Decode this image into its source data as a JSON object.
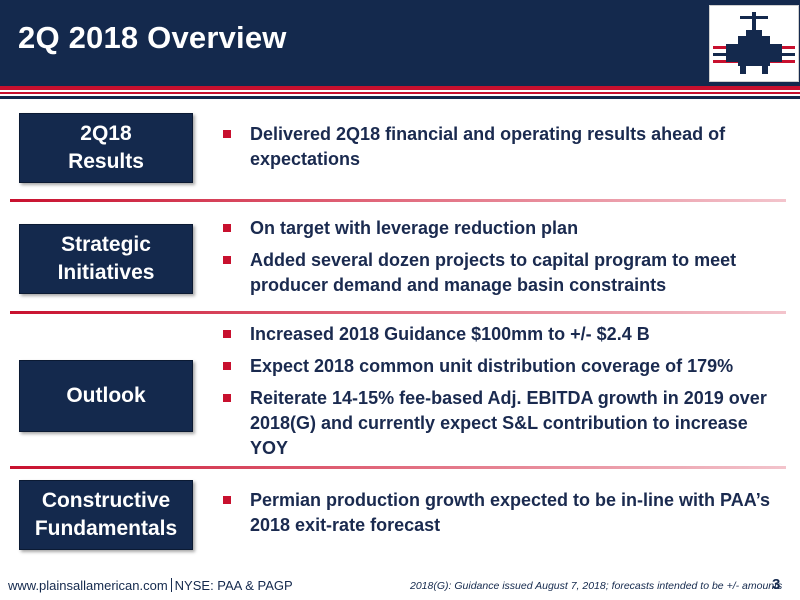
{
  "slide": {
    "title": "2Q 2018 Overview",
    "logo_icon": "plains-valve-logo-icon",
    "colors": {
      "navy": "#14294d",
      "red": "#c8102e",
      "text": "#1a2a4f"
    },
    "sections": [
      {
        "label_line1": "2Q18",
        "label_line2": "Results",
        "bullets": [
          "Delivered 2Q18 financial and operating results ahead of expectations"
        ]
      },
      {
        "label_line1": "Strategic",
        "label_line2": "Initiatives",
        "bullets": [
          "On target with leverage reduction plan",
          "Added several dozen projects to capital program to meet producer demand and manage basin constraints"
        ]
      },
      {
        "label_line1": "Outlook",
        "label_line2": "",
        "bullets": [
          "Increased 2018 Guidance $100mm to +/- $2.4 B",
          "Expect 2018 common unit distribution coverage of 179%",
          "Reiterate 14-15% fee-based Adj. EBITDA growth in 2019 over 2018(G) and currently expect S&L contribution to increase YOY"
        ]
      },
      {
        "label_line1": "Constructive",
        "label_line2": "Fundamentals",
        "bullets": [
          "Permian production growth expected to be in-line with PAA’s 2018 exit-rate forecast"
        ]
      }
    ]
  },
  "footer": {
    "website": "www.plainsallamerican.com",
    "ticker": "NYSE: PAA & PAGP",
    "note": "2018(G): Guidance issued August 7, 2018;  forecasts intended to be +/- amounts",
    "page_number": "3"
  }
}
